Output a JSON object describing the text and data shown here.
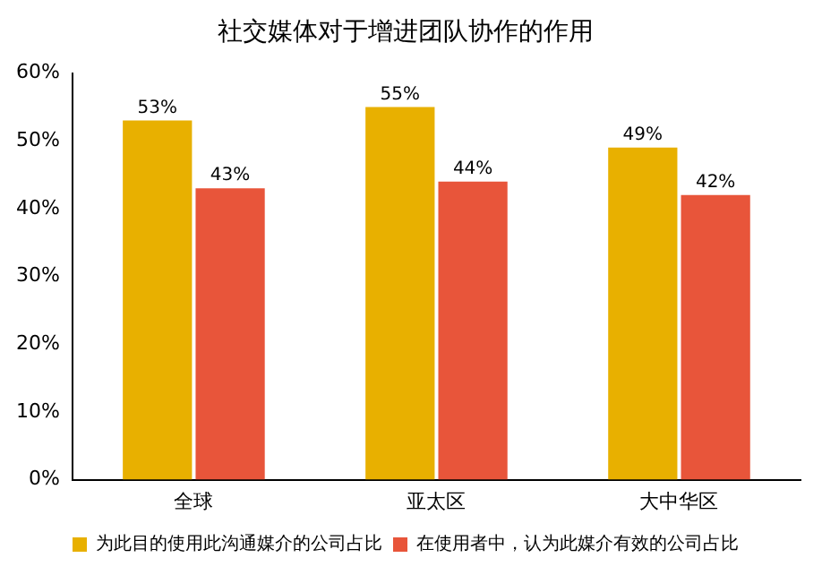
{
  "chart_data": {
    "type": "bar",
    "title": "社交媒体对于增进团队协作的作用",
    "categories": [
      "全球",
      "亚太区",
      "大中华区"
    ],
    "series": [
      {
        "name": "为此目的使用此沟通媒介的公司占比",
        "color": "#e8b000",
        "values": [
          53,
          55,
          49
        ],
        "value_labels": [
          "53%",
          "55%",
          "49%"
        ]
      },
      {
        "name": "在使用者中，认为此媒介有效的公司占比",
        "color": "#e8553a",
        "values": [
          43,
          44,
          42
        ],
        "value_labels": [
          "43%",
          "44%",
          "42%"
        ]
      }
    ],
    "ylim": [
      0,
      60
    ],
    "yticks": [
      {
        "value": 0,
        "label": "0%"
      },
      {
        "value": 10,
        "label": "10%"
      },
      {
        "value": 20,
        "label": "20%"
      },
      {
        "value": 30,
        "label": "30%"
      },
      {
        "value": 40,
        "label": "40%"
      },
      {
        "value": 50,
        "label": "50%"
      },
      {
        "value": 60,
        "label": "60%"
      }
    ],
    "grid": false,
    "legend": "bottom"
  }
}
